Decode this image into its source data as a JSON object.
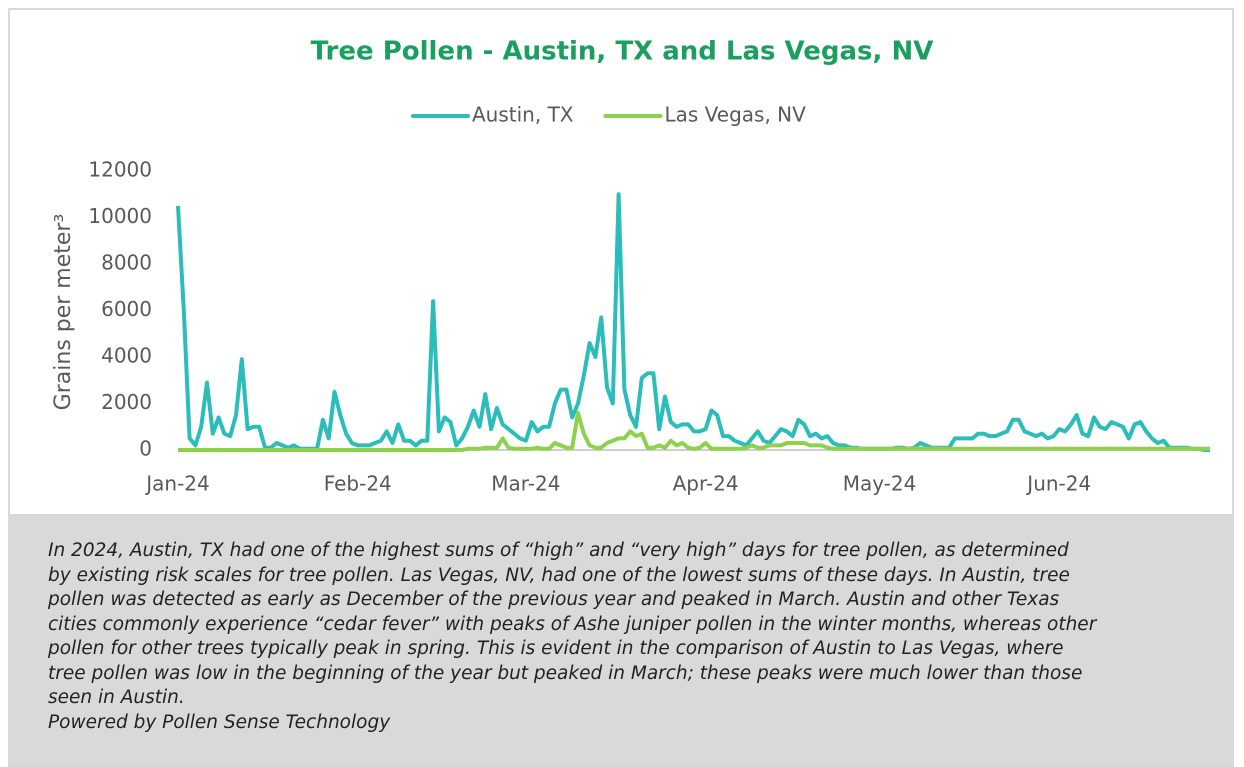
{
  "chart_data": {
    "type": "line",
    "title": "Tree Pollen - Austin, TX and Las Vegas, NV",
    "y_label": "Grains per meter³",
    "ylim": [
      0,
      12000
    ],
    "yticks": [
      0,
      2000,
      4000,
      6000,
      8000,
      10000,
      12000
    ],
    "grid": false,
    "legend": "top",
    "categories": [
      "Jan-24",
      null,
      null,
      null,
      null,
      null,
      null,
      null,
      null,
      null,
      null,
      null,
      null,
      null,
      null,
      null,
      null,
      null,
      null,
      null,
      null,
      null,
      null,
      null,
      null,
      null,
      null,
      null,
      null,
      null,
      null,
      "Feb-24",
      null,
      null,
      null,
      null,
      null,
      null,
      null,
      null,
      null,
      null,
      null,
      null,
      null,
      null,
      null,
      null,
      null,
      null,
      null,
      null,
      null,
      null,
      null,
      null,
      null,
      null,
      null,
      null,
      "Mar-24",
      null,
      null,
      null,
      null,
      null,
      null,
      null,
      null,
      null,
      null,
      null,
      null,
      null,
      null,
      null,
      null,
      null,
      null,
      null,
      null,
      null,
      null,
      null,
      null,
      null,
      null,
      null,
      null,
      null,
      null,
      "Apr-24",
      null,
      null,
      null,
      null,
      null,
      null,
      null,
      null,
      null,
      null,
      null,
      null,
      null,
      null,
      null,
      null,
      null,
      null,
      null,
      null,
      null,
      null,
      null,
      null,
      null,
      null,
      null,
      null,
      null,
      "May-24",
      null,
      null,
      null,
      null,
      null,
      null,
      null,
      null,
      null,
      null,
      null,
      null,
      null,
      null,
      null,
      null,
      null,
      null,
      null,
      null,
      null,
      null,
      null,
      null,
      null,
      null,
      null,
      null,
      null,
      null,
      "Jun-24",
      null,
      null,
      null,
      null,
      null,
      null,
      null,
      null,
      null,
      null,
      null,
      null,
      null,
      null,
      null,
      null,
      null,
      null,
      null,
      null,
      null,
      null,
      null,
      null,
      null,
      null
    ],
    "series": [
      {
        "name": "Austin, TX",
        "color": "#2bbdb9",
        "values": [
          10500,
          6000,
          500,
          200,
          1000,
          2900,
          700,
          1400,
          700,
          600,
          1500,
          3900,
          900,
          1000,
          1000,
          100,
          100,
          300,
          200,
          100,
          200,
          50,
          50,
          50,
          50,
          1300,
          500,
          2500,
          1500,
          700,
          300,
          200,
          200,
          200,
          300,
          400,
          800,
          300,
          1100,
          400,
          400,
          200,
          400,
          400,
          6400,
          800,
          1400,
          1200,
          200,
          500,
          1000,
          1700,
          1000,
          2400,
          900,
          1800,
          1100,
          900,
          700,
          500,
          400,
          1200,
          800,
          1000,
          1000,
          2000,
          2600,
          2600,
          1400,
          2000,
          3200,
          4600,
          4000,
          5700,
          2700,
          2000,
          11000,
          2600,
          1500,
          1000,
          3100,
          3300,
          3300,
          900,
          2300,
          1200,
          1000,
          1100,
          1100,
          800,
          800,
          900,
          1700,
          1500,
          600,
          600,
          400,
          300,
          200,
          500,
          800,
          400,
          300,
          600,
          900,
          800,
          600,
          1300,
          1100,
          600,
          700,
          500,
          600,
          300,
          200,
          200,
          100,
          100,
          50,
          50,
          50,
          50,
          50,
          50,
          100,
          100,
          50,
          100,
          300,
          200,
          100,
          100,
          100,
          100,
          500,
          500,
          500,
          500,
          700,
          700,
          600,
          600,
          700,
          800,
          1300,
          1300,
          800,
          700,
          600,
          700,
          500,
          600,
          900,
          800,
          1100,
          1500,
          700,
          600,
          1400,
          1000,
          900,
          1200,
          1100,
          1000,
          500,
          1100,
          1200,
          800,
          500,
          300,
          400,
          100,
          100,
          100,
          100,
          50,
          50,
          0,
          0
        ]
      },
      {
        "name": "Las Vegas, NV",
        "color": "#8ed14d",
        "values": [
          0,
          0,
          0,
          0,
          0,
          0,
          0,
          0,
          0,
          0,
          0,
          0,
          0,
          0,
          0,
          0,
          0,
          0,
          0,
          0,
          0,
          0,
          0,
          0,
          0,
          0,
          0,
          0,
          0,
          0,
          0,
          0,
          0,
          0,
          0,
          0,
          0,
          0,
          0,
          0,
          0,
          0,
          0,
          0,
          0,
          0,
          0,
          0,
          0,
          0,
          50,
          50,
          50,
          100,
          100,
          100,
          500,
          100,
          50,
          50,
          50,
          50,
          100,
          50,
          50,
          300,
          200,
          100,
          100,
          1600,
          700,
          200,
          100,
          100,
          300,
          400,
          500,
          500,
          800,
          600,
          700,
          100,
          100,
          200,
          100,
          400,
          200,
          300,
          100,
          50,
          100,
          300,
          50,
          50,
          50,
          50,
          50,
          50,
          100,
          200,
          100,
          100,
          200,
          200,
          200,
          300,
          300,
          300,
          300,
          200,
          200,
          200,
          100,
          50,
          50,
          50,
          50,
          50,
          50,
          50,
          50,
          50,
          50,
          50,
          50,
          50,
          50,
          50,
          50,
          50,
          50,
          50,
          50,
          50,
          50,
          50,
          50,
          50,
          50,
          50,
          50,
          50,
          50,
          50,
          50,
          50,
          50,
          50,
          50,
          50,
          50,
          50,
          50,
          50,
          50,
          50,
          50,
          50,
          50,
          50,
          50,
          50,
          50,
          50,
          50,
          50,
          50,
          50,
          50,
          50,
          50,
          50,
          50,
          50,
          50,
          50,
          50,
          50,
          50
        ]
      }
    ]
  },
  "caption": [
    " In 2024, Austin, TX had one of the highest sums of “high” and “very high” days for tree pollen, as determined",
    "by existing risk scales for tree pollen. Las Vegas, NV, had one of the lowest sums of these days. In Austin, tree",
    "pollen was detected as early as December of the previous year and peaked in March. Austin and other Texas",
    "cities commonly experience “cedar fever” with peaks of Ashe juniper pollen in the winter months, whereas other",
    "pollen for other trees typically peak in spring. This is evident in the comparison of Austin to Las Vegas, where",
    "tree pollen was low in the beginning of the year but peaked in March; these peaks were much lower than those",
    "seen in Austin."
  ],
  "footer": "Powered by Pollen Sense Technology"
}
